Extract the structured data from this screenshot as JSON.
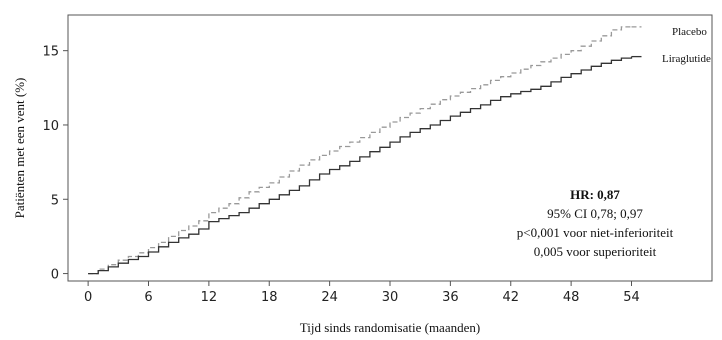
{
  "chart_data": {
    "type": "line",
    "xlabel": "Tijd sinds randomisatie (maanden)",
    "ylabel": "Patiënten met een vent (%)",
    "xlim": [
      -2,
      62
    ],
    "ylim": [
      -0.5,
      17.4
    ],
    "xticks": [
      0,
      6,
      12,
      18,
      24,
      30,
      36,
      42,
      48,
      54
    ],
    "yticks": [
      0,
      5,
      10,
      15
    ],
    "grid": false,
    "series": [
      {
        "name": "Placebo",
        "color": "#999999",
        "style": "dashed",
        "x": [
          0,
          1,
          2,
          3,
          4,
          5,
          6,
          7,
          8,
          9,
          10,
          11,
          12,
          13,
          14,
          15,
          16,
          17,
          18,
          19,
          20,
          21,
          22,
          23,
          24,
          25,
          26,
          27,
          28,
          29,
          30,
          31,
          32,
          33,
          34,
          35,
          36,
          37,
          38,
          39,
          40,
          41,
          42,
          43,
          44,
          45,
          46,
          47,
          48,
          49,
          50,
          51,
          52,
          53,
          54
        ],
        "y": [
          0.0,
          0.3,
          0.6,
          0.9,
          1.15,
          1.4,
          1.75,
          2.1,
          2.5,
          2.9,
          3.2,
          3.55,
          4.1,
          4.4,
          4.7,
          5.1,
          5.5,
          5.8,
          6.1,
          6.5,
          6.9,
          7.3,
          7.65,
          7.95,
          8.25,
          8.55,
          8.85,
          9.15,
          9.5,
          9.85,
          10.2,
          10.5,
          10.8,
          11.1,
          11.4,
          11.7,
          11.95,
          12.2,
          12.45,
          12.7,
          13.0,
          13.25,
          13.5,
          13.75,
          14.0,
          14.25,
          14.5,
          14.75,
          15.0,
          15.3,
          15.65,
          16.0,
          16.4,
          16.6,
          16.6
        ]
      },
      {
        "name": "Liraglutide",
        "color": "#333333",
        "style": "solid",
        "x": [
          0,
          1,
          2,
          3,
          4,
          5,
          6,
          7,
          8,
          9,
          10,
          11,
          12,
          13,
          14,
          15,
          16,
          17,
          18,
          19,
          20,
          21,
          22,
          23,
          24,
          25,
          26,
          27,
          28,
          29,
          30,
          31,
          32,
          33,
          34,
          35,
          36,
          37,
          38,
          39,
          40,
          41,
          42,
          43,
          44,
          45,
          46,
          47,
          48,
          49,
          50,
          51,
          52,
          53,
          54
        ],
        "y": [
          0.0,
          0.2,
          0.45,
          0.7,
          0.95,
          1.15,
          1.45,
          1.8,
          2.1,
          2.4,
          2.65,
          3.0,
          3.5,
          3.7,
          3.9,
          4.1,
          4.4,
          4.7,
          5.0,
          5.3,
          5.6,
          5.9,
          6.3,
          6.7,
          7.0,
          7.25,
          7.55,
          7.85,
          8.2,
          8.5,
          8.85,
          9.2,
          9.5,
          9.75,
          10.0,
          10.3,
          10.6,
          10.85,
          11.1,
          11.35,
          11.65,
          11.9,
          12.1,
          12.25,
          12.4,
          12.6,
          12.9,
          13.2,
          13.45,
          13.7,
          13.95,
          14.15,
          14.35,
          14.5,
          14.6
        ]
      }
    ],
    "legend": {
      "placement": "end-of-lines",
      "entries": [
        "Placebo",
        "Liraglutide"
      ]
    },
    "annotation": {
      "bold": "HR: 0,87",
      "lines": [
        "95% CI 0,78; 0,97",
        "p<0,001 voor niet-inferioriteit",
        "0,005 voor superioriteit"
      ]
    }
  }
}
